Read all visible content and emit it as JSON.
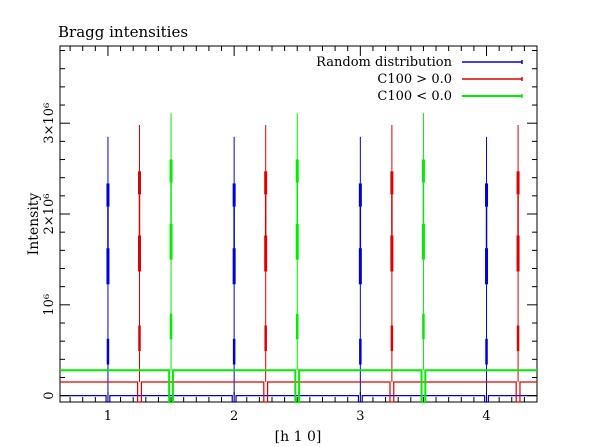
{
  "chart_data": {
    "type": "line",
    "title": "Bragg intensities",
    "xlabel": "[h 1 0]",
    "ylabel": "Intensity",
    "xlim": [
      0.62,
      4.4
    ],
    "ylim": [
      -70000,
      3850000
    ],
    "x_ticks": [
      {
        "value": 1,
        "label": "1"
      },
      {
        "value": 2,
        "label": "2"
      },
      {
        "value": 3,
        "label": "3"
      },
      {
        "value": 4,
        "label": "4"
      }
    ],
    "y_ticks": [
      {
        "value": 0,
        "label": "0"
      },
      {
        "value": 1000000,
        "label": "10⁶"
      },
      {
        "value": 2000000,
        "label": "2×10⁶"
      },
      {
        "value": 3000000,
        "label": "3×10⁶"
      }
    ],
    "grid": false,
    "legend_position": "top-right",
    "series": [
      {
        "name": "Random distribution",
        "color": "#0000dd",
        "baseline": 0,
        "peaks": [
          {
            "x": 1.0,
            "y": 2850000
          },
          {
            "x": 2.0,
            "y": 2850000
          },
          {
            "x": 3.0,
            "y": 2850000
          },
          {
            "x": 4.0,
            "y": 2850000
          }
        ]
      },
      {
        "name": "C100 > 0.0",
        "color": "#e00000",
        "baseline": 150000,
        "peaks": [
          {
            "x": 1.25,
            "y": 2980000
          },
          {
            "x": 2.25,
            "y": 2980000
          },
          {
            "x": 3.25,
            "y": 2980000
          },
          {
            "x": 4.25,
            "y": 2980000
          }
        ]
      },
      {
        "name": "C100 < 0.0",
        "color": "#00ee00",
        "baseline": 280000,
        "peaks": [
          {
            "x": 1.5,
            "y": 3110000
          },
          {
            "x": 2.5,
            "y": 3110000
          },
          {
            "x": 3.5,
            "y": 3110000
          }
        ]
      }
    ]
  }
}
